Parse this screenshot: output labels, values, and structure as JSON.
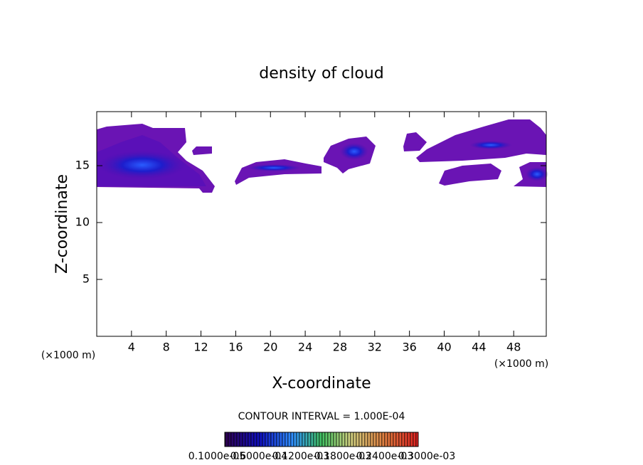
{
  "chart_data": {
    "type": "contour",
    "title": "density of cloud",
    "x_label": "X-coordinate",
    "y_label": "Z-coordinate",
    "x_unit_labels": [
      "(×1000 m)",
      "(×1000 m)"
    ],
    "xlim": [
      0,
      51.75
    ],
    "xticks": [
      4,
      8,
      12,
      16,
      20,
      24,
      28,
      32,
      36,
      40,
      44,
      48
    ],
    "ylim": [
      0,
      19.75
    ],
    "yticks": [
      5,
      10,
      15
    ],
    "contour_interval": "CONTOUR INTERVAL = 1.000E-04",
    "colorbar_labels": [
      "0.1000e-05",
      "0.6000e-04",
      "0.1200e-03",
      "0.1800e-03",
      "0.2400e-03",
      "0.3000e-03"
    ]
  }
}
